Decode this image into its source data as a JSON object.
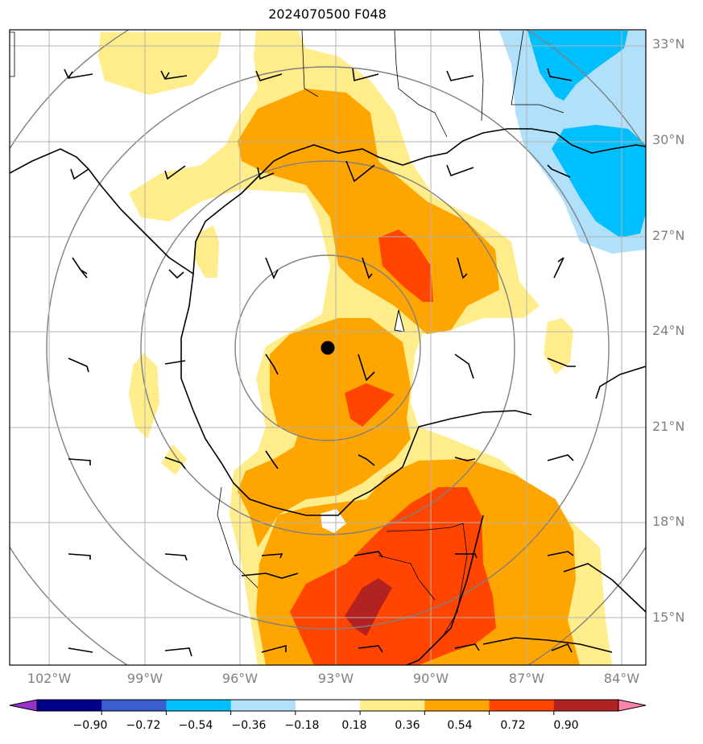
{
  "title": "2024070500 F048",
  "lat_labels": [
    "33°N",
    "30°N",
    "27°N",
    "24°N",
    "21°N",
    "18°N",
    "15°N"
  ],
  "lon_labels": [
    "102°W",
    "99°W",
    "96°W",
    "93°W",
    "90°W",
    "87°W",
    "84°W"
  ],
  "colorbar": {
    "ticks": [
      "−0.90",
      "−0.72",
      "−0.54",
      "−0.36",
      "−0.18",
      "0.18",
      "0.36",
      "0.54",
      "0.72",
      "0.90"
    ],
    "colors": [
      "#9932cc",
      "#00008b",
      "#3a5fcd",
      "#00bfff",
      "#b0e0fa",
      "#ffffff",
      "#ffec8b",
      "#ffa500",
      "#ff4500",
      "#b22222",
      "#ff82ab"
    ]
  },
  "storm_center": {
    "lon": -93.3,
    "lat": 23.5
  }
}
